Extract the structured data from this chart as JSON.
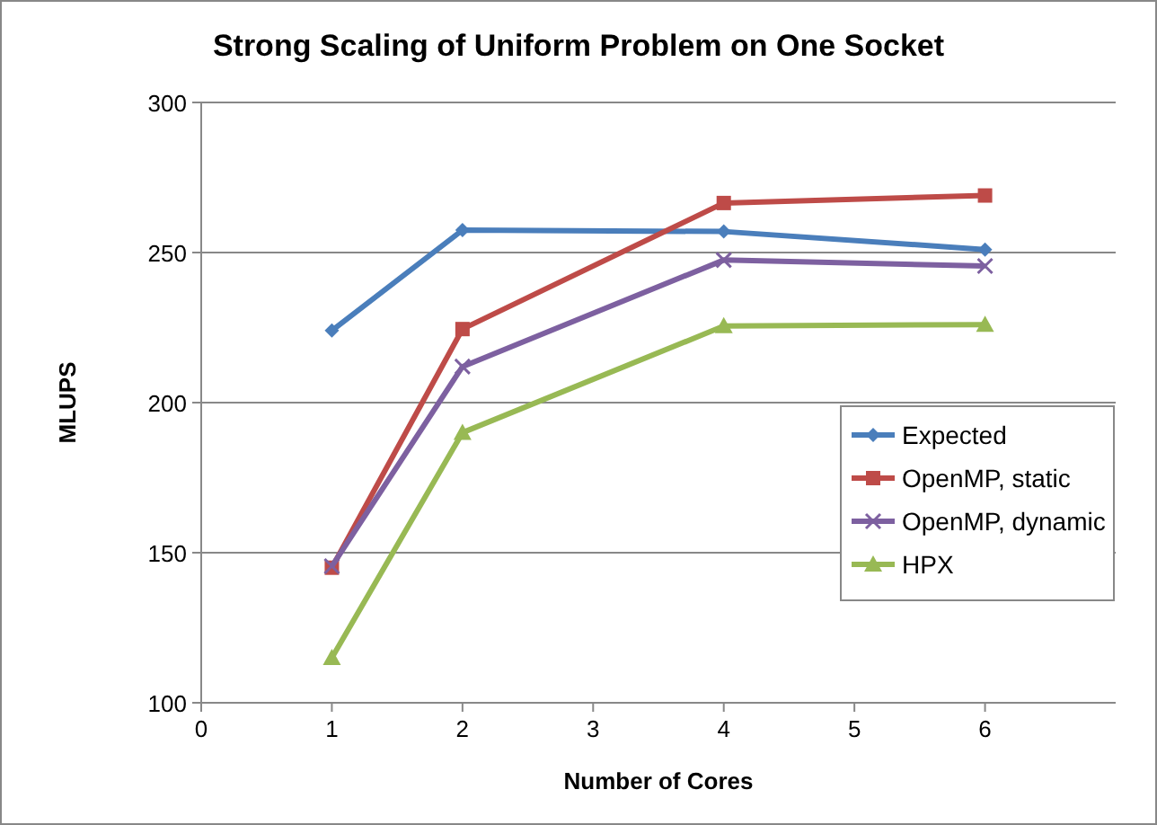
{
  "chart_data": {
    "type": "line",
    "title": "Strong Scaling of Uniform Problem on One Socket",
    "xlabel": "Number of Cores",
    "ylabel": "MLUPS",
    "x": [
      1,
      2,
      4,
      6
    ],
    "xlim": [
      0,
      7
    ],
    "xticks": [
      0,
      1,
      2,
      3,
      4,
      5,
      6
    ],
    "ylim": [
      100,
      300
    ],
    "yticks": [
      100,
      150,
      200,
      250,
      300
    ],
    "grid": "y",
    "legend": "right",
    "series": [
      {
        "name": "Expected",
        "color": "#4a7ebb",
        "marker": "diamond",
        "values": [
          224,
          257.5,
          257,
          251
        ]
      },
      {
        "name": "OpenMP, static",
        "color": "#be4b48",
        "marker": "square",
        "values": [
          145,
          224.5,
          266.5,
          269
        ]
      },
      {
        "name": "OpenMP, dynamic",
        "color": "#7d60a0",
        "marker": "cross",
        "values": [
          145.5,
          212,
          247.5,
          245.5
        ]
      },
      {
        "name": "HPX",
        "color": "#98b954",
        "marker": "triangle",
        "values": [
          115,
          190,
          225.5,
          226
        ]
      }
    ]
  }
}
